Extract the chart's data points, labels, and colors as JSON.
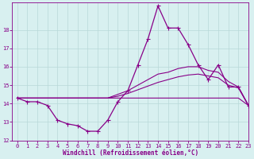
{
  "xlabel": "Windchill (Refroidissement éolien,°C)",
  "x": [
    0,
    1,
    2,
    3,
    4,
    5,
    6,
    7,
    8,
    9,
    10,
    11,
    12,
    13,
    14,
    15,
    16,
    17,
    18,
    19,
    20,
    21,
    22,
    23
  ],
  "y_main": [
    14.3,
    14.1,
    14.1,
    13.9,
    13.1,
    12.9,
    12.8,
    12.5,
    12.5,
    13.1,
    14.1,
    14.7,
    16.1,
    17.5,
    19.3,
    18.1,
    18.1,
    17.2,
    16.1,
    15.3,
    16.1,
    14.9,
    14.9,
    13.9
  ],
  "y_flat": [
    14.3,
    14.3,
    14.3,
    14.3,
    14.3,
    14.3,
    14.3,
    14.3,
    14.3,
    14.3,
    14.3,
    14.3,
    14.3,
    14.3,
    14.3,
    14.3,
    14.3,
    14.3,
    14.3,
    14.3,
    14.3,
    14.3,
    14.3,
    13.9
  ],
  "y_upper": [
    14.3,
    14.3,
    14.3,
    14.3,
    14.3,
    14.3,
    14.3,
    14.3,
    14.3,
    14.3,
    14.5,
    14.7,
    15.0,
    15.3,
    15.6,
    15.7,
    15.9,
    16.0,
    16.0,
    15.8,
    15.7,
    15.2,
    14.9,
    13.9
  ],
  "y_lower": [
    14.3,
    14.3,
    14.3,
    14.3,
    14.3,
    14.3,
    14.3,
    14.3,
    14.3,
    14.3,
    14.4,
    14.55,
    14.75,
    14.95,
    15.15,
    15.3,
    15.45,
    15.55,
    15.6,
    15.5,
    15.4,
    15.0,
    14.85,
    13.9
  ],
  "ylim": [
    12,
    19.5
  ],
  "xlim": [
    -0.5,
    23
  ],
  "yticks": [
    12,
    13,
    14,
    15,
    16,
    17,
    18
  ],
  "xticks": [
    0,
    1,
    2,
    3,
    4,
    5,
    6,
    7,
    8,
    9,
    10,
    11,
    12,
    13,
    14,
    15,
    16,
    17,
    18,
    19,
    20,
    21,
    22,
    23
  ],
  "line_color": "#880088",
  "bg_color": "#d8f0f0",
  "grid_color": "#b8d8d8",
  "markersize": 2.0
}
